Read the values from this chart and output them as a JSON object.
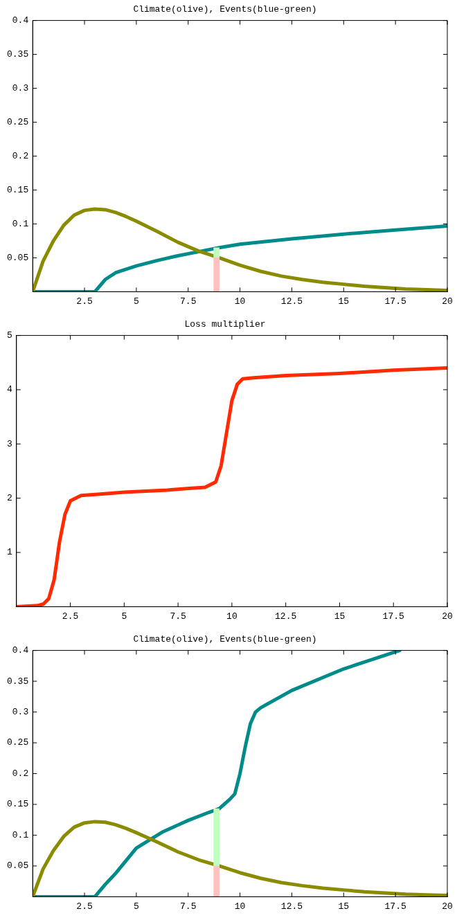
{
  "chart_data": [
    {
      "type": "line",
      "title": "Climate(olive), Events(blue-green)",
      "stacked": true,
      "xlim": [
        0,
        20
      ],
      "xticks": [
        2.5,
        5,
        7.5,
        10,
        12.5,
        15,
        17.5,
        20
      ],
      "ylim": [
        0,
        0.4
      ],
      "yticks": [
        0.05,
        0.1,
        0.15,
        0.2,
        0.25,
        0.3,
        0.35,
        0.4
      ],
      "series": [
        {
          "color": "#8b8b00",
          "x": [
            0,
            0.5,
            1,
            1.5,
            2,
            2.5,
            3,
            3.5,
            4,
            4.5,
            5,
            6,
            7,
            8,
            9,
            10,
            11,
            12,
            13,
            14,
            15,
            16,
            17,
            18,
            19,
            20
          ],
          "values": [
            0,
            0.045,
            0.075,
            0.098,
            0.113,
            0.12,
            0.122,
            0.121,
            0.117,
            0.111,
            0.104,
            0.089,
            0.073,
            0.06,
            0.05,
            0.039,
            0.03,
            0.023,
            0.018,
            0.014,
            0.011,
            0.008,
            0.006,
            0.004,
            0.003,
            0.002
          ]
        },
        {
          "color": "#008b8b",
          "x": [
            0,
            1,
            2,
            3,
            3.5,
            4,
            5,
            6,
            7,
            8,
            9,
            10,
            12.5,
            15,
            17.5,
            20
          ],
          "values": [
            0,
            0,
            0,
            0,
            0.018,
            0.028,
            0.038,
            0.046,
            0.053,
            0.059,
            0.065,
            0.07,
            0.078,
            0.085,
            0.091,
            0.097
          ]
        },
        {
          "type": "bar",
          "color": "#ffc0c0",
          "x": [
            9
          ],
          "values": [
            0.05
          ]
        },
        {
          "type": "bar",
          "color": "#c0ffc0",
          "x": [
            9
          ],
          "values": [
            0.015
          ]
        }
      ]
    },
    {
      "type": "line",
      "title": "Loss multiplier",
      "xlim": [
        0,
        20
      ],
      "xticks": [
        2.5,
        5,
        7.5,
        10,
        12.5,
        15,
        17.5,
        20
      ],
      "ylim": [
        0,
        5
      ],
      "yticks": [
        1,
        2,
        3,
        4,
        5
      ],
      "series": [
        {
          "color": "#ff2a00",
          "x": [
            0,
            1,
            1.25,
            1.5,
            1.75,
            2,
            2.25,
            2.5,
            3,
            4,
            5,
            6,
            7,
            8,
            8.75,
            9.25,
            9.5,
            9.75,
            10,
            10.25,
            10.5,
            11,
            12.5,
            15,
            17.5,
            20
          ],
          "values": [
            0,
            0.02,
            0.05,
            0.15,
            0.5,
            1.2,
            1.7,
            1.95,
            2.05,
            2.08,
            2.11,
            2.13,
            2.15,
            2.18,
            2.2,
            2.3,
            2.6,
            3.2,
            3.8,
            4.1,
            4.2,
            4.22,
            4.26,
            4.3,
            4.36,
            4.4
          ]
        }
      ]
    },
    {
      "type": "line",
      "title": "Climate(olive), Events(blue-green)",
      "stacked": true,
      "xlim": [
        0,
        20
      ],
      "xticks": [
        2.5,
        5,
        7.5,
        10,
        12.5,
        15,
        17.5,
        20
      ],
      "ylim": [
        0,
        0.4
      ],
      "yticks": [
        0.05,
        0.1,
        0.15,
        0.2,
        0.25,
        0.3,
        0.35,
        0.4
      ],
      "series": [
        {
          "color": "#8b8b00",
          "x": [
            0,
            0.5,
            1,
            1.5,
            2,
            2.5,
            3,
            3.5,
            4,
            4.5,
            5,
            6,
            7,
            8,
            9,
            10,
            11,
            12,
            13,
            14,
            15,
            16,
            17,
            18,
            19,
            20
          ],
          "values": [
            0,
            0.045,
            0.075,
            0.098,
            0.113,
            0.12,
            0.122,
            0.121,
            0.117,
            0.111,
            0.104,
            0.089,
            0.073,
            0.06,
            0.05,
            0.039,
            0.03,
            0.023,
            0.018,
            0.014,
            0.011,
            0.008,
            0.006,
            0.004,
            0.003,
            0.002
          ]
        },
        {
          "color": "#008b8b",
          "x": [
            0,
            1,
            2,
            3,
            3.5,
            4,
            5,
            6.25,
            7.5,
            8.5,
            9,
            9.5,
            9.75,
            10,
            10.25,
            10.5,
            10.75,
            11,
            12.5,
            15,
            17.7
          ],
          "values": [
            0,
            0,
            0,
            0,
            0.02,
            0.038,
            0.079,
            0.105,
            0.124,
            0.137,
            0.143,
            0.158,
            0.167,
            0.2,
            0.243,
            0.281,
            0.3,
            0.307,
            0.335,
            0.37,
            0.4
          ]
        },
        {
          "type": "bar",
          "color": "#ffc0c0",
          "x": [
            9
          ],
          "values": [
            0.05
          ]
        },
        {
          "type": "bar",
          "color": "#c0ffc0",
          "x": [
            9
          ],
          "values": [
            0.093
          ]
        }
      ]
    }
  ]
}
